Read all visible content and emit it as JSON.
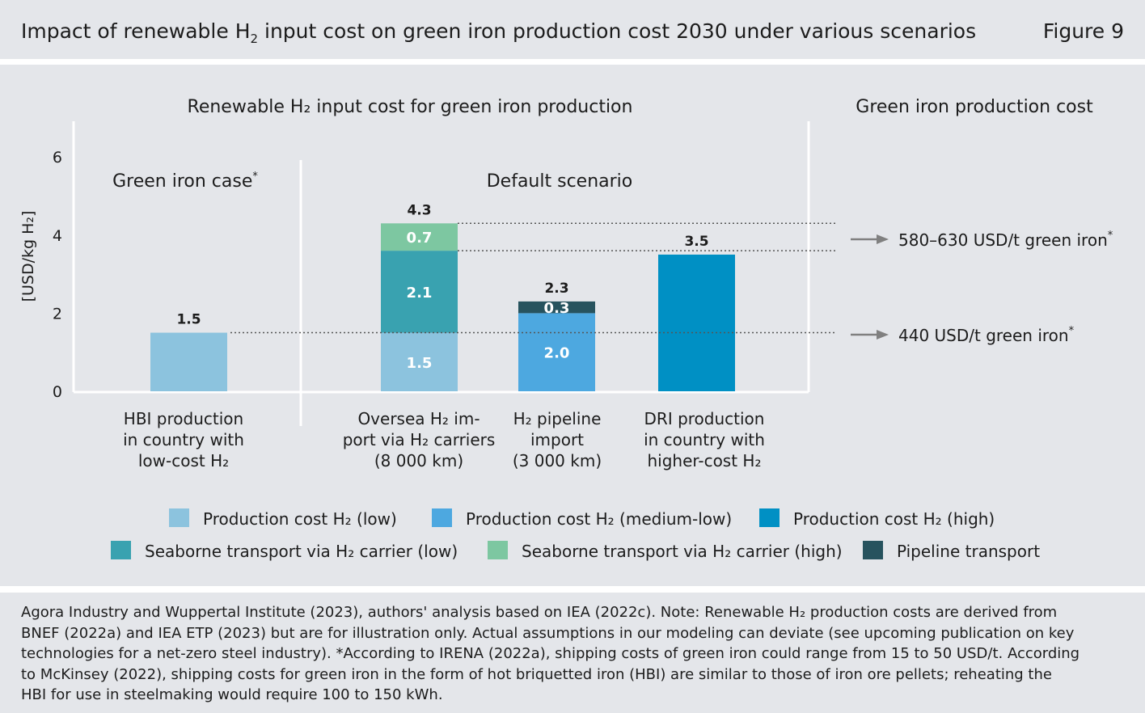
{
  "header": {
    "title_prefix": "Impact of renewable H",
    "title_sub": "2",
    "title_suffix": " input cost on green iron production cost 2030 under various scenarios",
    "figure_label": "Figure 9"
  },
  "colors": {
    "background_band": "#e4e6ea",
    "prod_low": "#8cc3de",
    "prod_medium_low": "#4da8e0",
    "prod_high": "#0090c4",
    "sea_low": "#39a2b0",
    "sea_high": "#7dc7a1",
    "pipeline": "#27535e"
  },
  "chart_data": {
    "type": "bar",
    "stacked": true,
    "panel_title": "Renewable H₂ input cost for green iron production",
    "right_title": "Green iron production cost",
    "ylabel": "[USD/kg H₂]",
    "ylim": [
      0,
      7
    ],
    "yticks": [
      0,
      2,
      4,
      6
    ],
    "groups": [
      {
        "label": "Green iron case",
        "note": "*"
      },
      {
        "label": "Default scenario"
      }
    ],
    "categories": [
      [
        "HBI production",
        "in country with",
        "low-cost H₂"
      ],
      [
        "Oversea H₂ im-",
        "port via H₂ carriers",
        "(8 000 km)"
      ],
      [
        "H₂ pipeline",
        "import",
        "(3 000 km)"
      ],
      [
        "DRI production",
        "in country with",
        "higher-cost H₂"
      ]
    ],
    "series": [
      {
        "name": "Production cost H₂ (low)",
        "color_key": "prod_low",
        "values": [
          1.5,
          1.5,
          0,
          0
        ]
      },
      {
        "name": "Production cost H₂ (medium-low)",
        "color_key": "prod_medium_low",
        "values": [
          0,
          0,
          2.0,
          0
        ]
      },
      {
        "name": "Production cost H₂ (high)",
        "color_key": "prod_high",
        "values": [
          0,
          0,
          0,
          3.5
        ]
      },
      {
        "name": "Seaborne transport via H₂ carrier (low)",
        "color_key": "sea_low",
        "values": [
          0,
          2.1,
          0,
          0
        ]
      },
      {
        "name": "Seaborne transport via H₂ carrier (high)",
        "color_key": "sea_high",
        "values": [
          0,
          0.7,
          0,
          0
        ]
      },
      {
        "name": "Pipeline transport",
        "color_key": "pipeline",
        "values": [
          0,
          0,
          0.3,
          0
        ]
      }
    ],
    "totals": [
      "1.5",
      "4.3",
      "2.3",
      "3.5"
    ],
    "segment_labels": [
      [],
      [
        "1.5",
        "2.1",
        "0.7"
      ],
      [
        "2.0",
        "0.3"
      ],
      []
    ],
    "annotations": [
      {
        "text": "580–630 USD/t green iron",
        "note": "*",
        "y_range": [
          3.6,
          4.3
        ]
      },
      {
        "text": "440 USD/t green iron",
        "note": "*",
        "y": 1.5
      }
    ]
  },
  "footer": {
    "lines": [
      "Agora Industry and Wuppertal Institute (2023), authors' analysis based on IEA (2022c). Note: Renewable H₂ production costs are derived from",
      "BNEF (2022a) and IEA ETP (2023) but are for illustration only. Actual assumptions in our modeling can deviate (see upcoming publication on key",
      "technologies for a net-zero steel industry). *According to IRENA (2022a), shipping costs of green iron could range from 15 to 50 USD/t. According",
      "to McKinsey (2022), shipping costs for green iron in the form of hot briquetted iron (HBI) are similar to those of iron ore pellets; reheating the",
      "HBI for use in steelmaking would require 100 to 150 kWh."
    ]
  }
}
